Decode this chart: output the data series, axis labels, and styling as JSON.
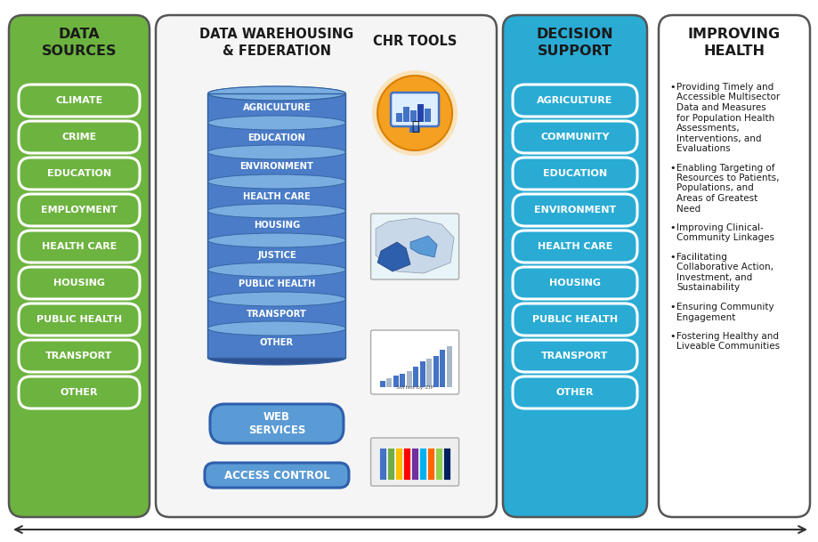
{
  "col1_title": "DATA\nSOURCES",
  "col1_items": [
    "CLIMATE",
    "CRIME",
    "EDUCATION",
    "EMPLOYMENT",
    "HEALTH CARE",
    "HOUSING",
    "PUBLIC HEALTH",
    "TRANSPORT",
    "OTHER"
  ],
  "col1_bg": "#6DB33F",
  "col1_box_fill": "#6DB33F",
  "col1_box_edge": "#FFFFFF",
  "col1_text_color": "#FFFFFF",
  "col2_title1": "DATA WAREHOUSING\n& FEDERATION",
  "col2_title2": "CHR TOOLS",
  "col2_db_items": [
    "AGRICULTURE",
    "EDUCATION",
    "ENVIRONMENT",
    "HEALTH CARE",
    "HOUSING",
    "JUSTICE",
    "PUBLIC HEALTH",
    "TRANSPORT",
    "OTHER"
  ],
  "col2_ws_label": "WEB\nSERVICES",
  "col2_ac_label": "ACCESS CONTROL",
  "col2_db_body": "#4A7CC7",
  "col2_db_top": "#6A9FD8",
  "col2_db_edge": "#2E5FAC",
  "col2_ws_color": "#5B9BD5",
  "col2_panel_bg": "#F8F8F8",
  "col3_title": "DECISION\nSUPPORT",
  "col3_items": [
    "AGRICULTURE",
    "COMMUNITY",
    "EDUCATION",
    "ENVIRONMENT",
    "HEALTH CARE",
    "HOUSING",
    "PUBLIC HEALTH",
    "TRANSPORT",
    "OTHER"
  ],
  "col3_bg": "#29ABD4",
  "col3_box_fill": "#29ABD4",
  "col3_box_edge": "#FFFFFF",
  "col3_text_color": "#FFFFFF",
  "col4_title": "IMPROVING\nHEALTH",
  "col4_items": [
    "Providing Timely and\nAccessible Multisector\nData and Measures\nfor Population Health\nAssessments,\nInterventions, and\nEvaluations",
    "Enabling Targeting of\nResources to Patients,\nPopulations, and\nAreas of Greatest\nNeed",
    "Improving Clinical-\nCommunity Linkages",
    "Facilitating\nCollaborative Action,\nInvestment, and\nSustainability",
    "Ensuring Community\nEngagement",
    "Fostering Healthy and\nLiveable Communities"
  ],
  "bg_color": "#FFFFFF",
  "border_color": "#555555",
  "arrow_color": "#333333"
}
